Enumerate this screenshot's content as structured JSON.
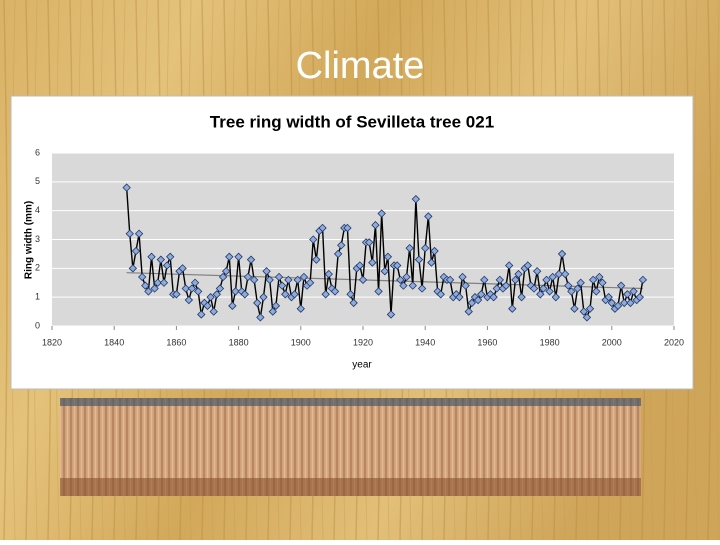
{
  "slide_title": "Climate",
  "chart_data": {
    "type": "line",
    "title": "Tree ring width of Sevilleta tree 021",
    "x_label": "year",
    "y_label": "Ring width (mm)",
    "x": [
      1844,
      1845,
      1846,
      1847,
      1848,
      1849,
      1850,
      1851,
      1852,
      1853,
      1854,
      1855,
      1856,
      1857,
      1858,
      1859,
      1860,
      1861,
      1862,
      1863,
      1864,
      1865,
      1866,
      1867,
      1868,
      1869,
      1870,
      1871,
      1872,
      1873,
      1874,
      1875,
      1876,
      1877,
      1878,
      1879,
      1880,
      1881,
      1882,
      1883,
      1884,
      1885,
      1886,
      1887,
      1888,
      1889,
      1890,
      1891,
      1892,
      1893,
      1894,
      1895,
      1896,
      1897,
      1898,
      1899,
      1900,
      1901,
      1902,
      1903,
      1904,
      1905,
      1906,
      1907,
      1908,
      1909,
      1910,
      1911,
      1912,
      1913,
      1914,
      1915,
      1916,
      1917,
      1918,
      1919,
      1920,
      1921,
      1922,
      1923,
      1924,
      1925,
      1926,
      1927,
      1928,
      1929,
      1930,
      1931,
      1932,
      1933,
      1934,
      1935,
      1936,
      1937,
      1938,
      1939,
      1940,
      1941,
      1942,
      1943,
      1944,
      1945,
      1946,
      1947,
      1948,
      1949,
      1950,
      1951,
      1952,
      1953,
      1954,
      1955,
      1956,
      1957,
      1958,
      1959,
      1960,
      1961,
      1962,
      1963,
      1964,
      1965,
      1966,
      1967,
      1968,
      1969,
      1970,
      1971,
      1972,
      1973,
      1974,
      1975,
      1976,
      1977,
      1978,
      1979,
      1980,
      1981,
      1982,
      1983,
      1984,
      1985,
      1986,
      1987,
      1988,
      1989,
      1990,
      1991,
      1992,
      1993,
      1994,
      1995,
      1996,
      1997,
      1998,
      1999,
      2000,
      2001,
      2002,
      2003,
      2004,
      2005,
      2006,
      2007,
      2008,
      2009,
      2010
    ],
    "series": [
      {
        "name": "Ring width",
        "color": "#8faadc",
        "line_color": "#000000",
        "values": [
          4.8,
          3.2,
          2.0,
          2.6,
          3.2,
          1.7,
          1.4,
          1.2,
          2.4,
          1.3,
          1.5,
          2.3,
          1.5,
          2.1,
          2.4,
          1.1,
          1.1,
          1.9,
          2.0,
          1.3,
          0.9,
          1.3,
          1.5,
          1.2,
          0.4,
          0.8,
          0.7,
          1.0,
          0.5,
          1.1,
          1.3,
          1.7,
          1.9,
          2.4,
          0.7,
          1.2,
          2.4,
          1.2,
          1.1,
          1.7,
          2.3,
          1.6,
          0.8,
          0.3,
          1.0,
          1.9,
          1.6,
          0.5,
          0.7,
          1.7,
          1.4,
          1.1,
          1.6,
          1.0,
          1.1,
          1.6,
          0.6,
          1.7,
          1.4,
          1.5,
          3.0,
          2.3,
          3.3,
          3.4,
          1.1,
          1.8,
          1.3,
          1.2,
          2.5,
          2.8,
          3.4,
          3.4,
          1.1,
          0.8,
          2.0,
          2.1,
          1.6,
          2.9,
          2.9,
          2.2,
          3.5,
          1.2,
          3.9,
          1.9,
          2.4,
          0.4,
          2.1,
          2.1,
          1.6,
          1.4,
          1.7,
          2.7,
          1.4,
          4.4,
          2.3,
          1.3,
          2.7,
          3.8,
          2.2,
          2.6,
          1.2,
          1.1,
          1.7,
          1.6,
          1.6,
          1.0,
          1.1,
          1.0,
          1.7,
          1.4,
          0.5,
          0.8,
          1.0,
          0.9,
          1.1,
          1.6,
          1.0,
          1.1,
          1.0,
          1.3,
          1.6,
          1.3,
          1.4,
          2.1,
          0.6,
          1.6,
          1.8,
          1.0,
          2.0,
          2.1,
          1.4,
          1.3,
          1.9,
          1.1,
          1.3,
          1.6,
          1.2,
          1.7,
          1.0,
          1.8,
          2.5,
          1.8,
          1.4,
          1.2,
          0.6,
          1.3,
          1.5,
          0.5,
          0.3,
          0.6,
          1.6,
          1.2,
          1.7,
          1.5,
          0.9,
          1.0,
          0.8,
          0.6,
          0.7,
          1.4,
          0.8,
          1.1,
          0.8,
          1.2,
          0.9,
          1.0,
          1.6
        ]
      }
    ],
    "trendline": {
      "color": "#808080",
      "x": [
        1844,
        2010
      ],
      "values": [
        1.85,
        1.3
      ]
    },
    "xlim": [
      1820,
      2020
    ],
    "xticks": [
      1820,
      1840,
      1860,
      1880,
      1900,
      1920,
      1940,
      1960,
      1980,
      2000,
      2020
    ],
    "ylim": [
      0,
      6
    ],
    "yticks": [
      0,
      1,
      2,
      3,
      4,
      5,
      6
    ],
    "grid": true
  }
}
